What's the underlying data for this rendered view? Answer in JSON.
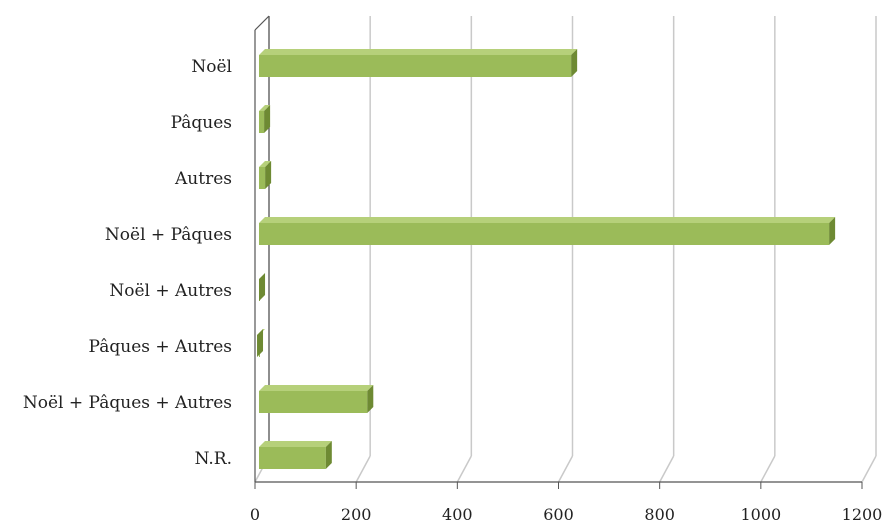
{
  "chart_data": {
    "type": "bar",
    "orientation": "horizontal",
    "style": "3d",
    "categories": [
      "Noël",
      "Pâques",
      "Autres",
      "Noël + Pâques",
      "Noël + Autres",
      "Pâques + Autres",
      "Noël + Pâques + Autres",
      "N.R."
    ],
    "values": [
      625,
      18,
      20,
      1135,
      8,
      4,
      222,
      140
    ],
    "xlim": [
      0,
      1200
    ],
    "xticks": [
      "0",
      "200",
      "400",
      "600",
      "800",
      "1000",
      "1200"
    ],
    "title": "",
    "xlabel": "",
    "ylabel": "",
    "grid": "vertical",
    "legend": "none",
    "colors": {
      "bar_front": "#9BBB59",
      "bar_top": "#B6D07A",
      "bar_side": "#6E8A33",
      "grid": "#c9c9c9",
      "axis": "#555555"
    }
  }
}
